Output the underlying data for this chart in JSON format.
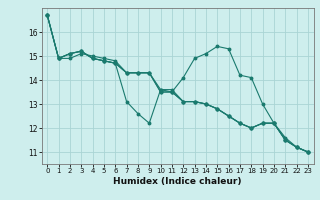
{
  "title": "",
  "xlabel": "Humidex (Indice chaleur)",
  "ylabel": "",
  "bg_color": "#ceeeed",
  "grid_color": "#aad4d4",
  "line_color": "#1a7a6e",
  "xlim": [
    -0.5,
    23.5
  ],
  "ylim": [
    10.5,
    17.0
  ],
  "yticks": [
    11,
    12,
    13,
    14,
    15,
    16
  ],
  "xticks": [
    0,
    1,
    2,
    3,
    4,
    5,
    6,
    7,
    8,
    9,
    10,
    11,
    12,
    13,
    14,
    15,
    16,
    17,
    18,
    19,
    20,
    21,
    22,
    23
  ],
  "series": [
    [
      16.7,
      14.9,
      15.1,
      15.2,
      14.9,
      14.8,
      14.7,
      14.3,
      14.3,
      14.3,
      13.6,
      13.6,
      13.1,
      13.1,
      13.0,
      12.8,
      12.5,
      12.2,
      12.0,
      12.2,
      12.2,
      11.5,
      11.2,
      11.0
    ],
    [
      16.7,
      14.9,
      15.1,
      15.2,
      14.9,
      14.8,
      14.7,
      13.1,
      12.6,
      12.2,
      13.6,
      13.5,
      14.1,
      14.9,
      15.1,
      15.4,
      15.3,
      14.2,
      14.1,
      13.0,
      12.2,
      11.6,
      11.2,
      11.0
    ],
    [
      16.7,
      14.9,
      14.9,
      15.1,
      15.0,
      14.9,
      14.8,
      14.3,
      14.3,
      14.3,
      13.5,
      13.5,
      13.1,
      13.1,
      13.0,
      12.8,
      12.5,
      12.2,
      12.0,
      12.2,
      12.2,
      11.5,
      11.2,
      11.0
    ],
    [
      16.7,
      14.9,
      15.1,
      15.2,
      14.9,
      14.8,
      14.7,
      14.3,
      14.3,
      14.3,
      13.5,
      13.5,
      13.1,
      13.1,
      13.0,
      12.8,
      12.5,
      12.2,
      12.0,
      12.2,
      12.2,
      11.5,
      11.2,
      11.0
    ]
  ]
}
